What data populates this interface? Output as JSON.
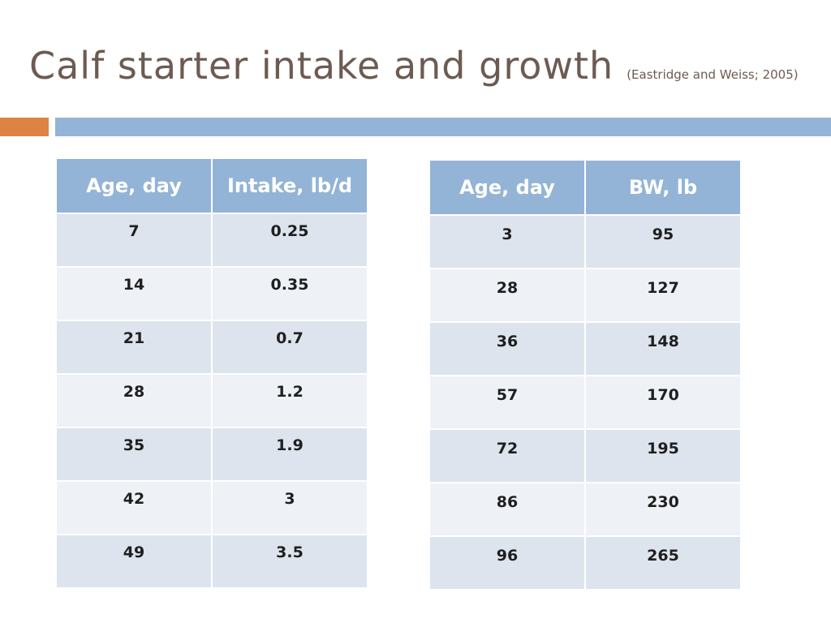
{
  "title": "Calf starter intake and growth",
  "citation": "(Eastridge and Weiss; 2005)",
  "colors": {
    "title_text": "#6d5b52",
    "accent_orange": "#de8344",
    "accent_blue": "#93b4d6",
    "row_dark": "#dde4ed",
    "row_light": "#eef2f7"
  },
  "intake_table": {
    "headers": [
      "Age, day",
      "Intake, lb/d"
    ],
    "rows": [
      [
        "7",
        "0.25"
      ],
      [
        "14",
        "0.35"
      ],
      [
        "21",
        "0.7"
      ],
      [
        "28",
        "1.2"
      ],
      [
        "35",
        "1.9"
      ],
      [
        "42",
        "3"
      ],
      [
        "49",
        "3.5"
      ]
    ]
  },
  "bw_table": {
    "headers": [
      "Age, day",
      "BW, lb"
    ],
    "rows": [
      [
        "3",
        "95"
      ],
      [
        "28",
        "127"
      ],
      [
        "36",
        "148"
      ],
      [
        "57",
        "170"
      ],
      [
        "72",
        "195"
      ],
      [
        "86",
        "230"
      ],
      [
        "96",
        "265"
      ]
    ]
  }
}
